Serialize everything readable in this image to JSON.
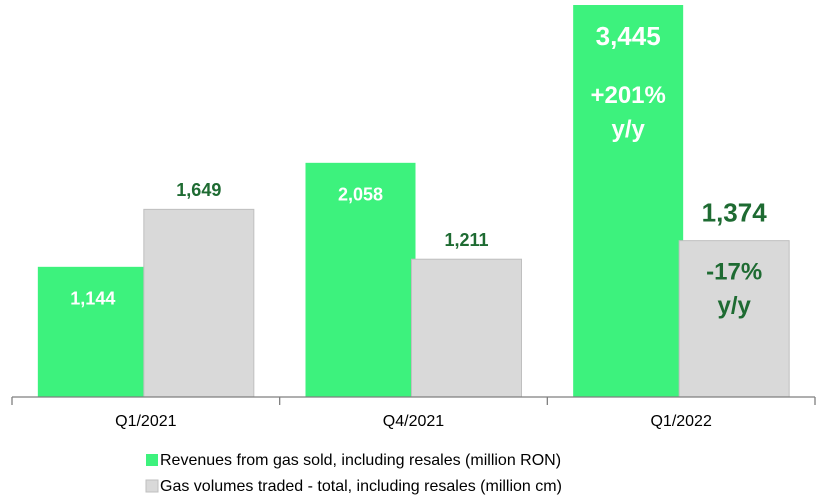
{
  "chart_data": {
    "type": "bar",
    "categories": [
      "Q1/2021",
      "Q4/2021",
      "Q1/2022"
    ],
    "series": [
      {
        "name": "Revenues from gas sold, including resales (million RON)",
        "color": "#3df27d",
        "values": [
          1144,
          2058,
          3445
        ],
        "value_labels": [
          "1,144",
          "2,058",
          "3,445"
        ]
      },
      {
        "name": "Gas volumes traded - total, including resales (million cm)",
        "color": "#d9d9d9",
        "values": [
          1649,
          1211,
          1374
        ],
        "value_labels": [
          "1,649",
          "1,211",
          "1,374"
        ]
      }
    ],
    "annotations": [
      {
        "lines": [
          "+201%",
          "y/y"
        ]
      },
      {
        "lines": [
          "-17%",
          "y/y"
        ]
      }
    ]
  }
}
